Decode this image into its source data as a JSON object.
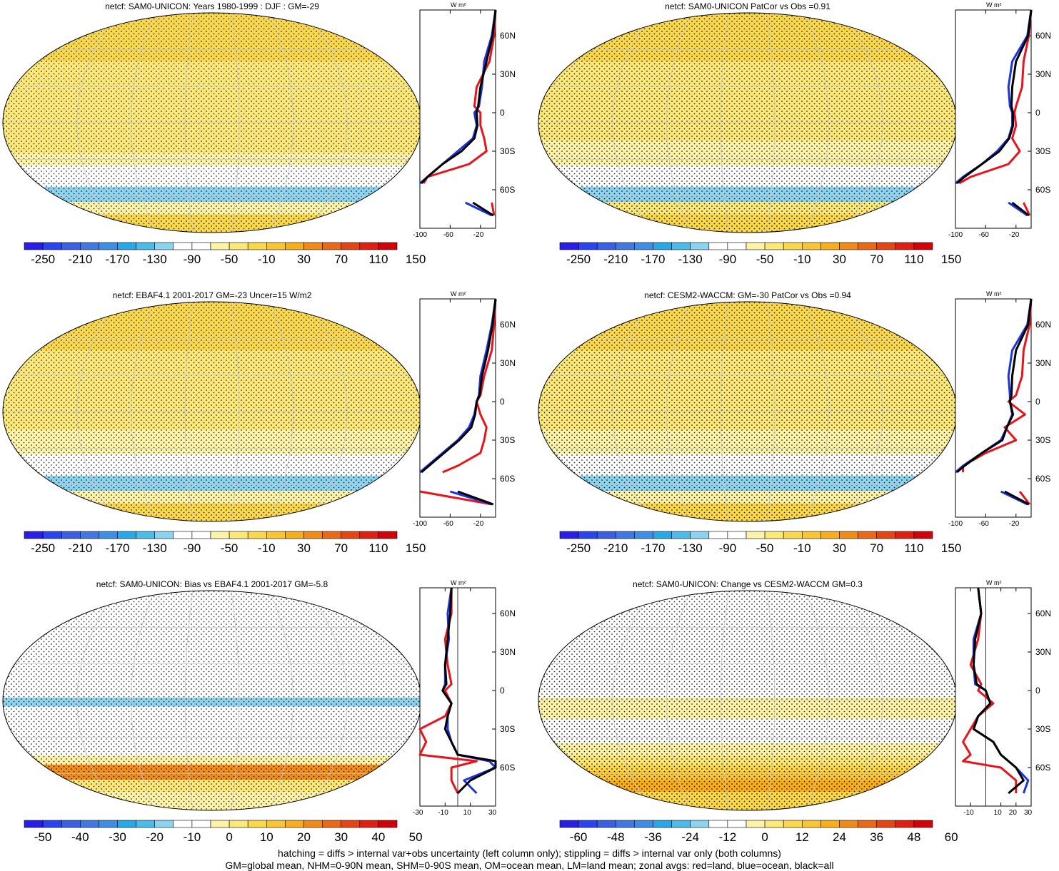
{
  "footer": {
    "line1": "hatching = diffs > internal var+obs uncertainty (left column only); stippling = diffs > internal var only (both columns)",
    "line2": "GM=global mean, NHM=0-90N mean, SHM=0-90S mean, OM=ocean mean, LM=land mean; zonal avgs: red=land, blue=ocean, black=all"
  },
  "colors": {
    "land": "#e8141b",
    "ocean": "#1c34e0",
    "all": "#000000",
    "palette_abs": [
      "#2a1ee6",
      "#2a45ef",
      "#3a5fe0",
      "#4178e1",
      "#3e8ee6",
      "#28a9e7",
      "#4cbbe9",
      "#8cd3ef",
      "#ffffff",
      "#ffffff",
      "#fdf3a8",
      "#fbe878",
      "#f9d84e",
      "#f8c535",
      "#f6ad1e",
      "#f08b1a",
      "#ea6916",
      "#e44514",
      "#e01f13",
      "#d0020b"
    ],
    "palette_diff": [
      "#2a1ee6",
      "#2a45ef",
      "#3a5fe0",
      "#4178e1",
      "#3e8ee6",
      "#28a9e7",
      "#4cbbe9",
      "#8cd3ef",
      "#ffffff",
      "#ffffff",
      "#fdf3a8",
      "#fbe878",
      "#f9d84e",
      "#f8c535",
      "#f6ad1e",
      "#f08b1a",
      "#ea6916",
      "#e44514",
      "#e01f13",
      "#d0020b"
    ]
  },
  "chart_data": [
    {
      "type": "heatmap",
      "panel": "top-left",
      "title": "netcf: SAM0-UNICON: Years 1980-1999 : DJF : GM=-29",
      "colorbar_labels": [
        "-250",
        "-210",
        "-170",
        "-130",
        "-90",
        "-50",
        "-10",
        "30",
        "70",
        "110",
        "150"
      ],
      "zonal_avg": {
        "unit": "W m²",
        "xticks": [
          "-100",
          "-60",
          "-20"
        ],
        "xlim": [
          -100,
          0
        ],
        "lat_labels": [
          "60N",
          "30N",
          "0",
          "30S",
          "60S"
        ],
        "lats": [
          80,
          60,
          40,
          20,
          5,
          0,
          -10,
          -20,
          -30,
          -40,
          -50,
          -55,
          -60,
          -70,
          -80
        ],
        "series": [
          {
            "name": "land",
            "color": "land",
            "values": [
              0,
              -2,
              -8,
              -25,
              -28,
              -20,
              -20,
              -15,
              -12,
              -35,
              -90,
              -95,
              null,
              -5,
              -2
            ]
          },
          {
            "name": "ocean",
            "color": "ocean",
            "values": [
              0,
              -5,
              -15,
              -18,
              -22,
              -28,
              -25,
              -30,
              -50,
              -70,
              -90,
              -100,
              null,
              -40,
              -5
            ]
          },
          {
            "name": "all",
            "color": "all",
            "values": [
              0,
              -4,
              -12,
              -20,
              -23,
              -25,
              -24,
              -28,
              -45,
              -70,
              -90,
              -98,
              null,
              -30,
              -3
            ]
          }
        ]
      }
    },
    {
      "type": "heatmap",
      "panel": "top-right",
      "title": "netcf: SAM0-UNICON PatCor vs Obs =0.91",
      "colorbar_labels": [
        "-250",
        "-210",
        "-170",
        "-130",
        "-90",
        "-50",
        "-10",
        "30",
        "70",
        "110",
        "150"
      ],
      "zonal_avg": {
        "unit": "W m²",
        "xticks": [
          "-100",
          "-60",
          "-20"
        ],
        "xlim": [
          -100,
          0
        ],
        "lat_labels": [
          "60N",
          "30N",
          "0",
          "30S",
          "60S"
        ],
        "lats": [
          80,
          60,
          40,
          20,
          5,
          0,
          -10,
          -20,
          -30,
          -40,
          -50,
          -55,
          -60,
          -70,
          -80
        ],
        "series": [
          {
            "name": "land",
            "color": "land",
            "values": [
              0,
              -3,
              -10,
              -12,
              -20,
              -22,
              -20,
              -25,
              -15,
              -30,
              -80,
              -95,
              null,
              -10,
              -2
            ]
          },
          {
            "name": "ocean",
            "color": "ocean",
            "values": [
              0,
              -5,
              -25,
              -30,
              -28,
              -25,
              -25,
              -30,
              -45,
              -65,
              -90,
              -100,
              null,
              -30,
              -5
            ]
          },
          {
            "name": "all",
            "color": "all",
            "values": [
              0,
              -4,
              -20,
              -25,
              -26,
              -24,
              -24,
              -29,
              -42,
              -65,
              -88,
              -98,
              null,
              -25,
              -3
            ]
          }
        ]
      }
    },
    {
      "type": "heatmap",
      "panel": "middle-left",
      "title": "netcf: EBAF4.1 2001-2017 GM=-23 Uncer=15 W/m2",
      "colorbar_labels": [
        "-250",
        "-210",
        "-170",
        "-130",
        "-90",
        "-50",
        "-10",
        "30",
        "70",
        "110",
        "150"
      ],
      "zonal_avg": {
        "unit": "W m²",
        "xticks": [
          "-100",
          "-60",
          "-20"
        ],
        "xlim": [
          -100,
          0
        ],
        "lat_labels": [
          "60N",
          "30N",
          "0",
          "30S",
          "60S"
        ],
        "lats": [
          80,
          60,
          40,
          20,
          5,
          0,
          -10,
          -20,
          -30,
          -40,
          -50,
          -55,
          -60,
          -70,
          -80
        ],
        "series": [
          {
            "name": "land",
            "color": "land",
            "values": [
              0,
              -2,
              -5,
              -15,
              -20,
              -25,
              -20,
              -12,
              -15,
              -20,
              -50,
              -70,
              null,
              -100,
              -5
            ]
          },
          {
            "name": "ocean",
            "color": "ocean",
            "values": [
              0,
              -5,
              -12,
              -20,
              -22,
              -25,
              -28,
              -35,
              -50,
              -70,
              -90,
              -100,
              null,
              -60,
              -5
            ]
          },
          {
            "name": "all",
            "color": "all",
            "values": [
              0,
              -4,
              -10,
              -18,
              -21,
              -25,
              -27,
              -32,
              -48,
              -68,
              -88,
              -98,
              null,
              -50,
              -3
            ]
          }
        ]
      }
    },
    {
      "type": "heatmap",
      "panel": "middle-right",
      "title": "netcf: CESM2-WACCM: GM=-30 PatCor vs Obs =0.94",
      "colorbar_labels": [
        "-250",
        "-210",
        "-170",
        "-130",
        "-90",
        "-50",
        "-10",
        "30",
        "70",
        "110",
        "150"
      ],
      "zonal_avg": {
        "unit": "W m²",
        "xticks": [
          "-100",
          "-60",
          "-20"
        ],
        "xlim": [
          -100,
          0
        ],
        "lat_labels": [
          "60N",
          "30N",
          "0",
          "30S",
          "60S"
        ],
        "lats": [
          80,
          60,
          40,
          20,
          5,
          0,
          -10,
          -20,
          -30,
          -40,
          -50,
          -55,
          -60,
          -70,
          -80
        ],
        "series": [
          {
            "name": "land",
            "color": "land",
            "values": [
              0,
              -2,
              -10,
              -12,
              -20,
              -30,
              -8,
              -35,
              -20,
              -60,
              -90,
              -90,
              null,
              -15,
              -2
            ]
          },
          {
            "name": "ocean",
            "color": "ocean",
            "values": [
              0,
              -5,
              -25,
              -30,
              -28,
              -28,
              -25,
              -32,
              -40,
              -65,
              -90,
              -100,
              null,
              -40,
              -5
            ]
          },
          {
            "name": "all",
            "color": "all",
            "values": [
              0,
              -4,
              -20,
              -25,
              -26,
              -28,
              -24,
              -32,
              -38,
              -65,
              -88,
              -98,
              null,
              -35,
              -3
            ]
          }
        ]
      }
    },
    {
      "type": "heatmap",
      "panel": "bottom-left",
      "title": "netcf: SAM0-UNICON: Bias vs EBAF4.1 2001-2017 GM=-5.8",
      "colorbar_labels": [
        "-50",
        "-40",
        "-30",
        "-20",
        "-10",
        "0",
        "10",
        "20",
        "30",
        "40",
        "50"
      ],
      "zonal_avg": {
        "unit": "W m²",
        "xticks": [
          "-30",
          "-10",
          "10",
          "30"
        ],
        "xlim": [
          -30,
          30
        ],
        "lat_labels": [
          "60N",
          "30N",
          "0",
          "30S",
          "60S"
        ],
        "lats": [
          80,
          60,
          40,
          20,
          5,
          0,
          -10,
          -20,
          -30,
          -40,
          -50,
          -55,
          -60,
          -70,
          -80
        ],
        "series": [
          {
            "name": "land",
            "color": "land",
            "values": [
              -5,
              -5,
              -10,
              -8,
              -5,
              -10,
              -5,
              -10,
              -30,
              -25,
              -30,
              15,
              -5,
              -5,
              0
            ]
          },
          {
            "name": "ocean",
            "color": "ocean",
            "values": [
              -5,
              -8,
              -7,
              -10,
              -10,
              -12,
              -5,
              -8,
              -8,
              -5,
              0,
              25,
              30,
              5,
              15
            ]
          },
          {
            "name": "all",
            "color": "all",
            "values": [
              -5,
              -6,
              -8,
              -10,
              -9,
              -12,
              -5,
              -8,
              -10,
              -5,
              0,
              30,
              30,
              10,
              0
            ]
          }
        ]
      }
    },
    {
      "type": "heatmap",
      "panel": "bottom-right",
      "title": "netcf: SAM0-UNICON: Change vs CESM2-WACCM GM=0.3",
      "colorbar_labels": [
        "-60",
        "-48",
        "-36",
        "-24",
        "-12",
        "0",
        "12",
        "24",
        "36",
        "48",
        "60"
      ],
      "zonal_avg": {
        "unit": "W m²",
        "xticks": [
          "-10",
          "10",
          "20",
          "30"
        ],
        "xlim": [
          -20,
          30
        ],
        "lat_labels": [
          "60N",
          "30N",
          "0",
          "30S",
          "60S"
        ],
        "lats": [
          80,
          60,
          40,
          20,
          5,
          0,
          -10,
          -20,
          -30,
          -40,
          -50,
          -55,
          -60,
          -70,
          -80
        ],
        "series": [
          {
            "name": "land",
            "color": "land",
            "values": [
              -5,
              -3,
              -5,
              -10,
              -3,
              -5,
              5,
              -5,
              -10,
              -15,
              -10,
              -15,
              10,
              20,
              20
            ]
          },
          {
            "name": "ocean",
            "color": "ocean",
            "values": [
              -5,
              -3,
              -8,
              -8,
              -7,
              0,
              3,
              -5,
              -8,
              5,
              10,
              15,
              20,
              28,
              25
            ]
          },
          {
            "name": "all",
            "color": "all",
            "values": [
              -5,
              -3,
              -7,
              -8,
              -6,
              0,
              3,
              -5,
              -8,
              5,
              10,
              15,
              20,
              25,
              15
            ]
          }
        ]
      }
    }
  ]
}
